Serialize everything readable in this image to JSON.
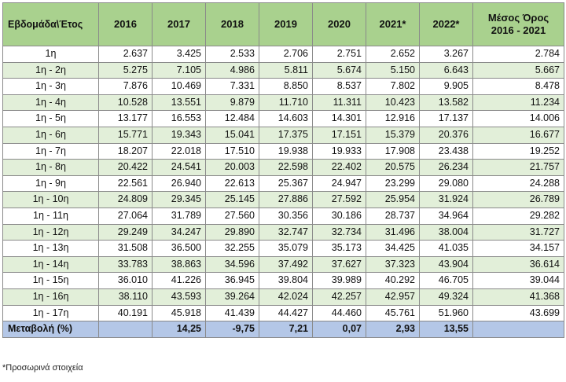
{
  "header": {
    "row_col": "Εβδομάδα\\Έτος",
    "years": [
      "2016",
      "2017",
      "2018",
      "2019",
      "2020",
      "2021*",
      "2022*"
    ],
    "avg_line1": "Μέσος Όρος",
    "avg_line2": "2016 - 2021"
  },
  "rows": [
    {
      "label": "1η",
      "values": [
        "2.637",
        "3.425",
        "2.533",
        "2.706",
        "2.751",
        "2.652",
        "3.267",
        "2.784"
      ]
    },
    {
      "label": "1η - 2η",
      "values": [
        "5.275",
        "7.105",
        "4.986",
        "5.811",
        "5.674",
        "5.150",
        "6.643",
        "5.667"
      ]
    },
    {
      "label": "1η - 3η",
      "values": [
        "7.876",
        "10.469",
        "7.331",
        "8.850",
        "8.537",
        "7.802",
        "9.905",
        "8.478"
      ]
    },
    {
      "label": "1η - 4η",
      "values": [
        "10.528",
        "13.551",
        "9.879",
        "11.710",
        "11.311",
        "10.423",
        "13.582",
        "11.234"
      ]
    },
    {
      "label": "1η - 5η",
      "values": [
        "13.177",
        "16.553",
        "12.484",
        "14.603",
        "14.301",
        "12.916",
        "17.137",
        "14.006"
      ]
    },
    {
      "label": "1η - 6η",
      "values": [
        "15.771",
        "19.343",
        "15.041",
        "17.375",
        "17.151",
        "15.379",
        "20.376",
        "16.677"
      ]
    },
    {
      "label": "1η - 7η",
      "values": [
        "18.207",
        "22.018",
        "17.510",
        "19.938",
        "19.933",
        "17.908",
        "23.438",
        "19.252"
      ]
    },
    {
      "label": "1η - 8η",
      "values": [
        "20.422",
        "24.541",
        "20.003",
        "22.598",
        "22.402",
        "20.575",
        "26.234",
        "21.757"
      ]
    },
    {
      "label": "1η - 9η",
      "values": [
        "22.561",
        "26.940",
        "22.613",
        "25.367",
        "24.947",
        "23.299",
        "29.080",
        "24.288"
      ]
    },
    {
      "label": "1η - 10η",
      "values": [
        "24.809",
        "29.345",
        "25.145",
        "27.886",
        "27.592",
        "25.954",
        "31.924",
        "26.789"
      ]
    },
    {
      "label": "1η - 11η",
      "values": [
        "27.064",
        "31.789",
        "27.560",
        "30.356",
        "30.186",
        "28.737",
        "34.964",
        "29.282"
      ]
    },
    {
      "label": "1η - 12η",
      "values": [
        "29.249",
        "34.247",
        "29.890",
        "32.747",
        "32.734",
        "31.496",
        "38.004",
        "31.727"
      ]
    },
    {
      "label": "1η - 13η",
      "values": [
        "31.508",
        "36.500",
        "32.255",
        "35.079",
        "35.173",
        "34.425",
        "41.035",
        "34.157"
      ]
    },
    {
      "label": "1η - 14η",
      "values": [
        "33.783",
        "38.863",
        "34.596",
        "37.492",
        "37.627",
        "37.323",
        "43.904",
        "36.614"
      ]
    },
    {
      "label": "1η - 15η",
      "values": [
        "36.010",
        "41.226",
        "36.945",
        "39.804",
        "39.989",
        "40.292",
        "46.705",
        "39.044"
      ]
    },
    {
      "label": "1η - 16η",
      "values": [
        "38.110",
        "43.593",
        "39.264",
        "42.024",
        "42.257",
        "42.957",
        "49.324",
        "41.368"
      ]
    },
    {
      "label": "1η - 17η",
      "values": [
        "40.191",
        "45.918",
        "41.439",
        "44.427",
        "44.460",
        "45.761",
        "51.960",
        "43.699"
      ]
    }
  ],
  "change_row": {
    "label": "Μεταβολή (%)",
    "values": [
      "",
      "14,25",
      "-9,75",
      "7,21",
      "0,07",
      "2,93",
      "13,55",
      ""
    ]
  },
  "footnote": "*Προσωρινά στοιχεία",
  "colors": {
    "header_bg": "#a9d18e",
    "stripe_bg": "#e2efd9",
    "change_bg": "#b4c7e7"
  }
}
